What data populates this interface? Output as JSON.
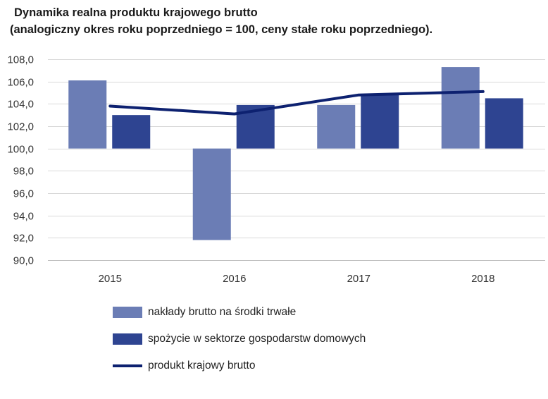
{
  "chart_data": {
    "type": "bar",
    "title": "Dynamika realna produktu krajowego brutto",
    "subtitle": "(analogiczny okres roku poprzedniego = 100, ceny stałe roku poprzedniego).",
    "categories": [
      "2015",
      "2016",
      "2017",
      "2018"
    ],
    "baseline": 100,
    "ylim": [
      90,
      108
    ],
    "ytick_labels": [
      "108,0",
      "106,0",
      "104,0",
      "102,0",
      "100,0",
      "98,0",
      "96,0",
      "94,0",
      "92,0",
      "90,0"
    ],
    "ytick_values": [
      108,
      106,
      104,
      102,
      100,
      98,
      96,
      94,
      92,
      90
    ],
    "grid": true,
    "series": [
      {
        "name": "nakłady brutto na środki trwałe",
        "kind": "bar",
        "color": "#6b7db5",
        "values": [
          106.1,
          91.8,
          103.9,
          107.3
        ]
      },
      {
        "name": "spożycie w sektorze gospodarstw domowych",
        "kind": "bar",
        "color": "#2e4491",
        "values": [
          103.0,
          103.9,
          104.9,
          104.5
        ]
      },
      {
        "name": "produkt krajowy brutto",
        "kind": "line",
        "color": "#0d2170",
        "values": [
          103.8,
          103.1,
          104.8,
          105.1
        ]
      }
    ],
    "legend_position": "bottom"
  }
}
